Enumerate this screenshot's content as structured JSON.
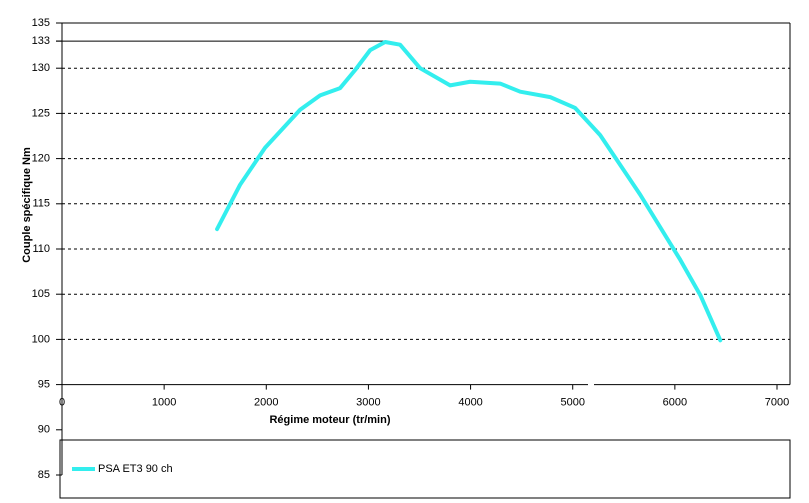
{
  "chart_data": {
    "type": "line",
    "x_label": "Régime moteur (tr/min)",
    "y_label": "Couple spécifique  Nm",
    "series": [
      {
        "name": "PSA ET3 90 ch",
        "color": "#33eeee",
        "x": [
          1518,
          1743,
          1988,
          2331,
          2527,
          2723,
          2870,
          3017,
          3164,
          3310,
          3506,
          3800,
          3996,
          4290,
          4486,
          4780,
          5024,
          5269,
          5661,
          6053,
          6249,
          6445
        ],
        "values": [
          112.2,
          117.1,
          121.2,
          125.4,
          127.0,
          127.8,
          129.8,
          132.0,
          132.9,
          132.6,
          130.0,
          128.1,
          128.5,
          128.3,
          127.4,
          126.8,
          125.6,
          122.6,
          116.0,
          108.8,
          104.9,
          99.9
        ]
      }
    ],
    "xlim": [
      0,
      7000
    ],
    "xticks": [
      0,
      1000,
      2000,
      3000,
      4000,
      5000,
      6000,
      7000
    ],
    "ylim": [
      85,
      135
    ],
    "yticks": [
      85,
      90,
      95,
      100,
      105,
      110,
      115,
      120,
      125,
      130,
      133,
      135
    ],
    "xaxis_crosses": 95,
    "hline": {
      "value": 133,
      "xmax": 3150
    },
    "grid": true,
    "legend": "bottom-left"
  }
}
